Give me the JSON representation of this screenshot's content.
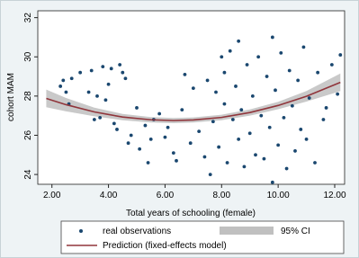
{
  "chart_data": {
    "type": "scatter",
    "xlabel": "Total years of schooling (female)",
    "ylabel": "cohort MAM",
    "xlim": [
      1.5,
      12.35
    ],
    "ylim": [
      23.5,
      32.35
    ],
    "xticks": [
      {
        "value": 2,
        "label": "2.00"
      },
      {
        "value": 4,
        "label": "4.00"
      },
      {
        "value": 6,
        "label": "6.00"
      },
      {
        "value": 8,
        "label": "8.00"
      },
      {
        "value": 10,
        "label": "10.00"
      },
      {
        "value": 12,
        "label": "12.00"
      }
    ],
    "yticks": [
      24,
      26,
      28,
      30,
      32
    ],
    "grid": false,
    "series": [
      {
        "name": "real observations",
        "type": "scatter",
        "color": "#1a476f",
        "x": [
          2.3,
          2.4,
          2.5,
          2.6,
          2.7,
          3.0,
          3.3,
          3.4,
          3.5,
          3.6,
          3.7,
          3.8,
          3.9,
          4.0,
          4.1,
          4.2,
          4.3,
          4.4,
          4.5,
          4.6,
          4.7,
          4.8,
          5.0,
          5.1,
          5.3,
          5.4,
          5.5,
          5.6,
          5.8,
          6.0,
          6.1,
          6.3,
          6.4,
          6.6,
          6.7,
          6.9,
          7.0,
          7.2,
          7.4,
          7.5,
          7.6,
          7.7,
          7.8,
          7.9,
          8.0,
          8.1,
          8.1,
          8.2,
          8.3,
          8.4,
          8.5,
          8.6,
          8.6,
          8.7,
          8.8,
          8.9,
          9.0,
          9.1,
          9.2,
          9.3,
          9.4,
          9.5,
          9.6,
          9.7,
          9.8,
          9.8,
          9.9,
          10.0,
          10.1,
          10.2,
          10.3,
          10.4,
          10.5,
          10.6,
          10.7,
          10.8,
          10.9,
          11.0,
          11.1,
          11.3,
          11.4,
          11.6,
          11.7,
          11.9,
          12.1,
          12.2
        ],
        "values": [
          28.5,
          28.8,
          28.2,
          27.6,
          28.9,
          29.2,
          28.2,
          29.3,
          26.8,
          28.0,
          26.9,
          29.5,
          27.8,
          28.6,
          29.4,
          26.6,
          26.3,
          29.6,
          29.2,
          28.9,
          25.6,
          26.0,
          27.4,
          25.3,
          26.5,
          24.6,
          25.8,
          26.8,
          27.1,
          25.9,
          26.4,
          25.1,
          24.7,
          27.3,
          29.1,
          25.6,
          28.4,
          26.2,
          24.9,
          28.8,
          24.0,
          26.7,
          28.2,
          25.4,
          30.0,
          27.6,
          29.2,
          24.6,
          30.3,
          26.8,
          28.5,
          25.8,
          30.8,
          27.3,
          24.4,
          29.6,
          26.1,
          28.0,
          25.0,
          30.0,
          27.0,
          24.8,
          29.0,
          26.4,
          23.6,
          31.0,
          28.3,
          25.5,
          30.2,
          26.9,
          24.3,
          29.3,
          27.5,
          25.2,
          28.8,
          26.3,
          30.5,
          25.8,
          27.9,
          24.6,
          29.2,
          26.8,
          27.4,
          29.6,
          28.1,
          30.1
        ]
      },
      {
        "name": "Prediction (fixed-effects model)",
        "type": "line",
        "color": "#90353b",
        "x": [
          1.8,
          2.5,
          3.5,
          4.5,
          5.5,
          6.3,
          7,
          8,
          9,
          10,
          11,
          12.2
        ],
        "values": [
          27.88,
          27.56,
          27.19,
          26.93,
          26.79,
          26.75,
          26.78,
          26.91,
          27.16,
          27.52,
          27.99,
          28.7
        ]
      }
    ],
    "band": {
      "name": "95% CI",
      "color": "#c0c0c0",
      "x": [
        1.8,
        2.5,
        3.5,
        4.5,
        5.5,
        6.3,
        7,
        8,
        9,
        10,
        11,
        12.2
      ],
      "lower": [
        27.43,
        27.22,
        26.97,
        26.77,
        26.65,
        26.62,
        26.65,
        26.77,
        27.0,
        27.33,
        27.72,
        28.25
      ],
      "upper": [
        28.33,
        27.9,
        27.41,
        27.09,
        26.93,
        26.88,
        26.91,
        27.05,
        27.32,
        27.71,
        28.26,
        29.15
      ]
    }
  }
}
